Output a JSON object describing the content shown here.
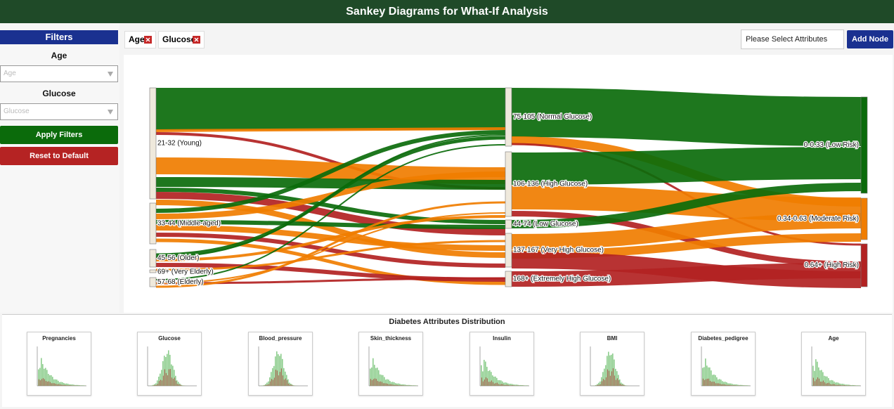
{
  "header": {
    "title": "Sankey Diagrams for What-If Analysis"
  },
  "sidebar": {
    "heading": "Filters",
    "filters": [
      {
        "label": "Age",
        "placeholder": "Age"
      },
      {
        "label": "Glucose",
        "placeholder": "Glucose"
      }
    ],
    "buttons": [
      "Apply Filters",
      "Reset to Default"
    ]
  },
  "toolbar": {
    "chips": [
      "Age",
      "Glucose"
    ],
    "input_placeholder": "Please Select Attributes",
    "button": "Add Node"
  },
  "sankey": {
    "nodes": [
      {
        "label": "21-32 (Young)"
      },
      {
        "label": "33-44 (Middle-aged)"
      },
      {
        "label": "45-56 (Older)"
      },
      {
        "label": "69+ (Very Elderly)"
      },
      {
        "label": "57-68 (Elderly)"
      },
      {
        "label": "75-105 (Normal Glucose)"
      },
      {
        "label": "106-136 (High Glucose)"
      },
      {
        "label": "44-74 (Low Glucose)"
      },
      {
        "label": "137-167 (Very High Glucose)"
      },
      {
        "label": "168+ (Extremely High Glucose)"
      },
      {
        "label": "0-0.33 (Low Risk)"
      },
      {
        "label": "0.34-0.63 (Moderate Risk)"
      },
      {
        "label": "0.64+ (High Risk)"
      }
    ]
  },
  "distribution": {
    "title": "Diabetes Attributes Distribution",
    "panels": [
      "Pregnancies",
      "Glucose",
      "Blood_pressure",
      "Skin_thickness",
      "Insulin",
      "BMI",
      "Diabetes_pedigree",
      "Age"
    ]
  }
}
